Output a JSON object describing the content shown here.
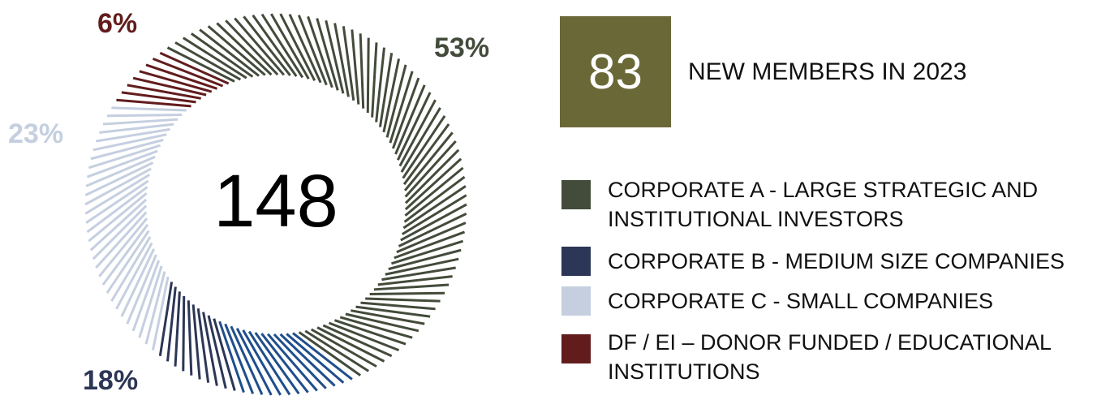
{
  "chart_data": {
    "type": "pie",
    "variant": "donut-tick-ring",
    "center_total": "148",
    "slices": [
      {
        "name": "CORPORATE A - LARGE STRATEGIC AND INSTITUTIONAL INVESTORS",
        "value": 53,
        "label": "53%",
        "color": "#434b3a"
      },
      {
        "name": "CORPORATE B - MEDIUM SIZE COMPANIES",
        "value": 18,
        "label": "18%",
        "color": "#2c3656"
      },
      {
        "name": "CORPORATE C - SMALL COMPANIES",
        "value": 23,
        "label": "23%",
        "color": "#c5cfe0"
      },
      {
        "name": "DF / EI – DONOR FUNDED / EDUCATIONAL INSTITUTIONS",
        "value": 6,
        "label": "6%",
        "color": "#621c1c"
      }
    ],
    "highlight_color": "#1f4e8c",
    "label_colors": {
      "53%": "#434b3a",
      "18%": "#2c3656",
      "23%": "#c5cfe0",
      "6%": "#621c1c"
    }
  },
  "stat": {
    "number": "83",
    "caption": "NEW MEMBERS IN 2023",
    "box_color": "#6b6838"
  },
  "legend": [
    {
      "label": "CORPORATE A - LARGE STRATEGIC AND INSTITUTIONAL INVESTORS",
      "color": "#434b3a"
    },
    {
      "label": "CORPORATE B - MEDIUM SIZE COMPANIES",
      "color": "#2c3656"
    },
    {
      "label": "CORPORATE C - SMALL COMPANIES",
      "color": "#c5cfe0"
    },
    {
      "label": "DF / EI – DONOR FUNDED / EDUCATIONAL INSTITUTIONS",
      "color": "#621c1c"
    }
  ]
}
